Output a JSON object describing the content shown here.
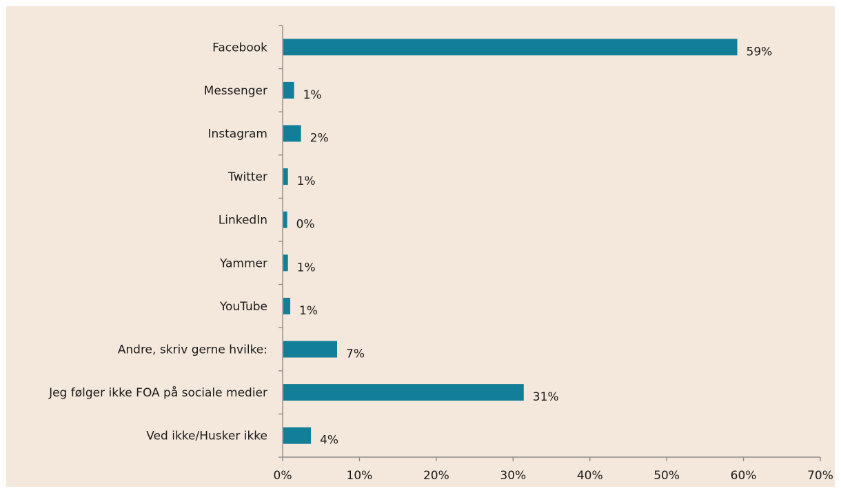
{
  "chart_data": {
    "type": "bar",
    "orientation": "horizontal",
    "title": "",
    "xlabel": "",
    "ylabel": "",
    "categories": [
      "Facebook",
      "Messenger",
      "Instagram",
      "Twitter",
      "LinkedIn",
      "Yammer",
      "YouTube",
      "Andre, skriv gerne hvilke:",
      "Jeg følger ikke FOA på sociale medier",
      "Ved ikke/Husker ikke"
    ],
    "values": [
      59.1,
      1.4,
      2.3,
      0.6,
      0.5,
      0.6,
      0.9,
      7.0,
      31.3,
      3.6
    ],
    "data_labels": [
      "59%",
      "1%",
      "2%",
      "1%",
      "0%",
      "1%",
      "1%",
      "7%",
      "31%",
      "4%"
    ],
    "xlim": [
      0,
      70
    ],
    "xticks": [
      0,
      10,
      20,
      30,
      40,
      50,
      60,
      70
    ],
    "xtick_labels": [
      "0%",
      "10%",
      "20%",
      "30%",
      "40%",
      "50%",
      "60%",
      "70%"
    ],
    "grid": false,
    "legend": "none",
    "bar_color": "#137e98",
    "background_color": "#f4e8dc"
  }
}
